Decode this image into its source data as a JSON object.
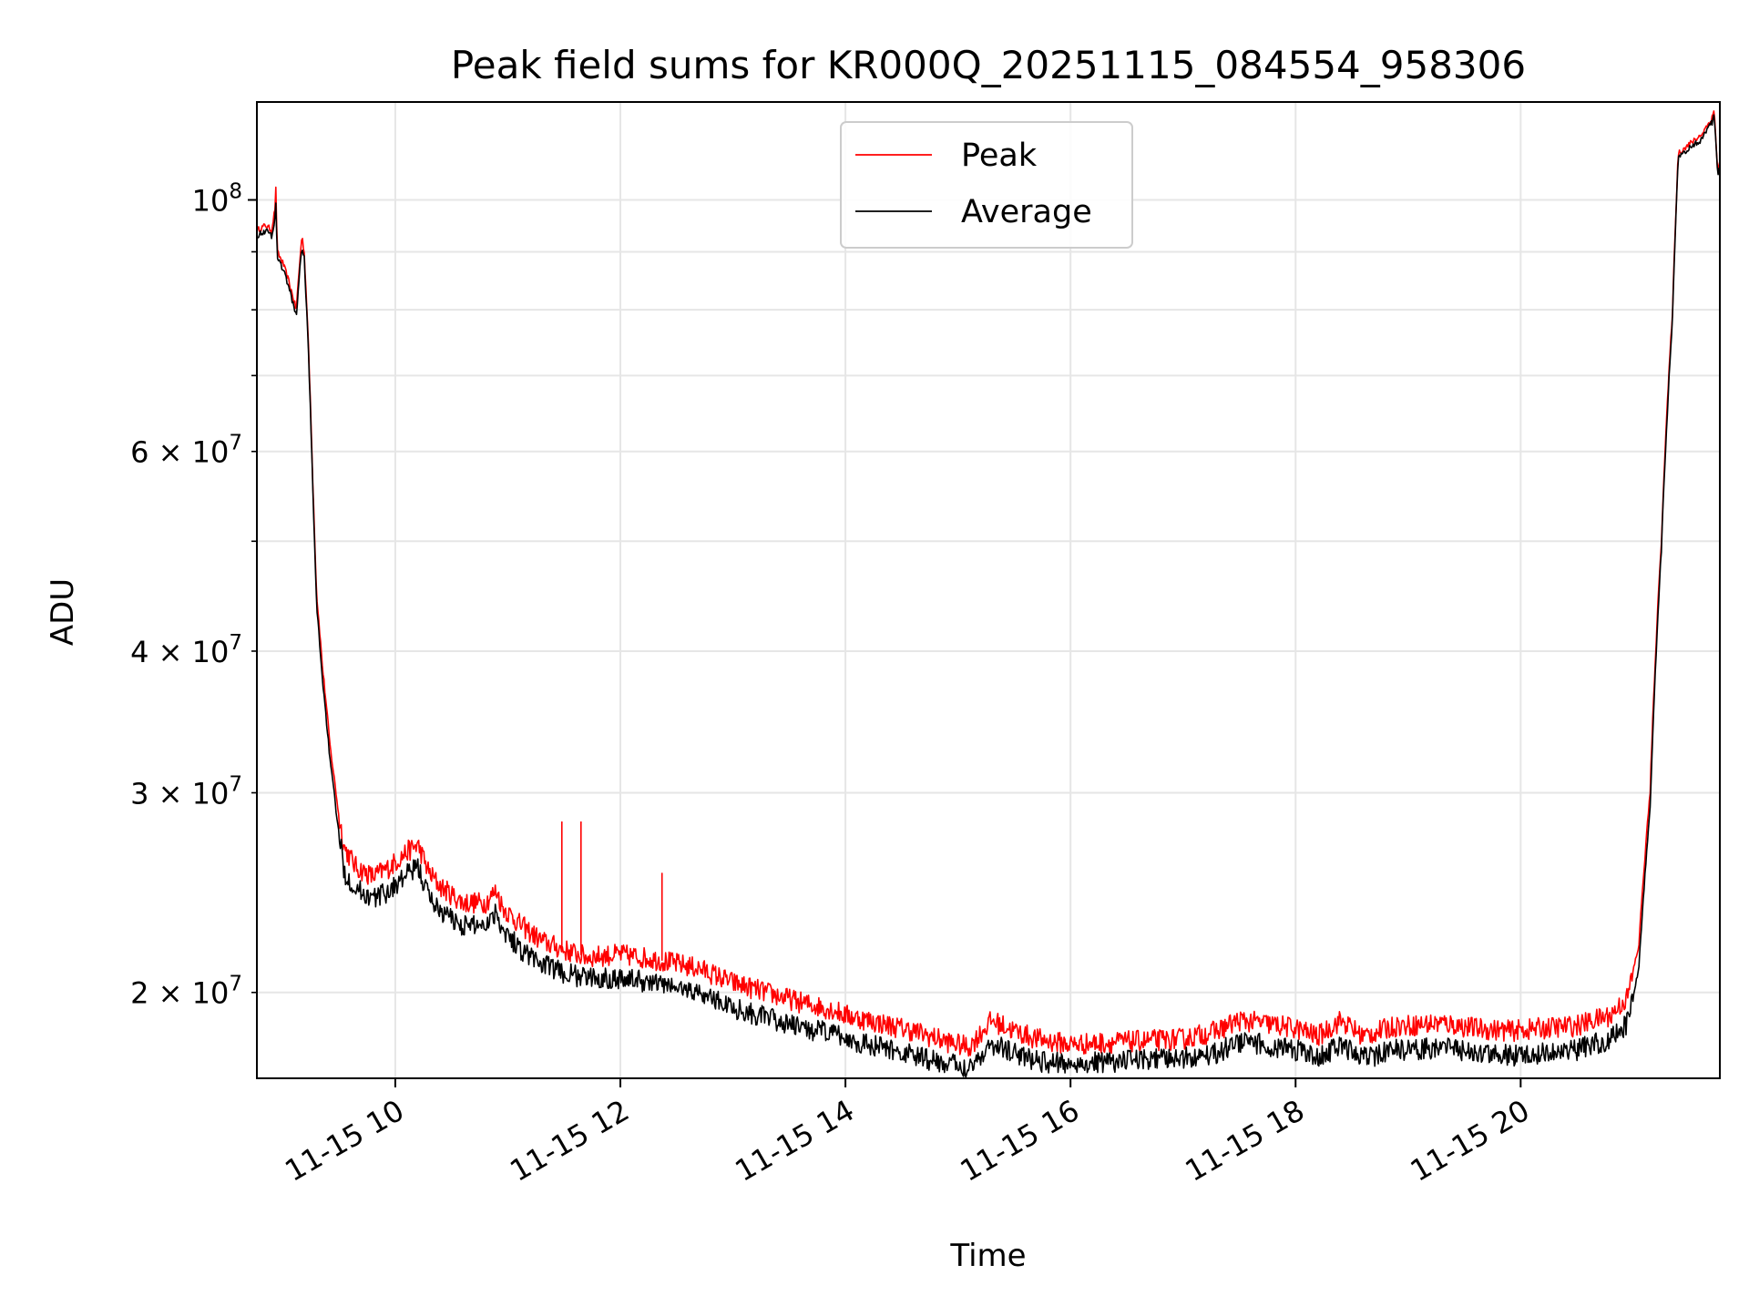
{
  "chart_data": {
    "type": "line",
    "title": "Peak field sums for KR000Q_20251115_084554_958306",
    "xlabel": "Time",
    "ylabel": "ADU",
    "x_range": [
      "2025-11-15 08:46",
      "2025-11-15 21:46"
    ],
    "xlim_hours": [
      8.77,
      21.77
    ],
    "ylim": [
      16800000,
      122000000
    ],
    "y_scale": "log",
    "grid": true,
    "legend_position": "top-center",
    "x_ticks": [
      {
        "value": 10,
        "label": "11-15 10"
      },
      {
        "value": 12,
        "label": "11-15 12"
      },
      {
        "value": 14,
        "label": "11-15 14"
      },
      {
        "value": 16,
        "label": "11-15 16"
      },
      {
        "value": 18,
        "label": "11-15 18"
      },
      {
        "value": 20,
        "label": "11-15 20"
      }
    ],
    "y_ticks_major": [
      {
        "value": 100000000,
        "base": "10",
        "exp": "8"
      }
    ],
    "y_ticks_minor": [
      {
        "value": 20000000,
        "coef": "2",
        "base": "10",
        "exp": "7"
      },
      {
        "value": 30000000,
        "coef": "3",
        "base": "10",
        "exp": "7"
      },
      {
        "value": 40000000,
        "coef": "4",
        "base": "10",
        "exp": "7"
      },
      {
        "value": 60000000,
        "coef": "6",
        "base": "10",
        "exp": "7"
      }
    ],
    "y_ticks_minor_unlabeled": [
      50000000,
      70000000,
      80000000,
      90000000
    ],
    "series": [
      {
        "name": "Peak",
        "color": "#ff0000",
        "x": [
          8.77,
          8.85,
          8.9,
          8.93,
          8.94,
          8.95,
          9.0,
          9.05,
          9.12,
          9.17,
          9.19,
          9.22,
          9.27,
          9.3,
          9.35,
          9.42,
          9.5,
          9.55,
          9.65,
          9.8,
          9.95,
          10.1,
          10.2,
          10.3,
          10.4,
          10.6,
          10.8,
          10.9,
          10.95,
          11.1,
          11.3,
          11.5,
          11.7,
          12.0,
          12.3,
          12.7,
          13.0,
          13.3,
          13.6,
          13.9,
          14.0,
          14.3,
          14.6,
          14.9,
          15.1,
          15.2,
          15.3,
          15.5,
          15.7,
          16.0,
          16.5,
          17.0,
          17.3,
          17.5,
          17.7,
          18.0,
          18.2,
          18.4,
          18.6,
          18.9,
          19.0,
          19.3,
          19.6,
          19.9,
          20.2,
          20.5,
          20.8,
          20.95,
          21.05,
          21.15,
          21.25,
          21.35,
          21.4,
          21.5,
          21.6,
          21.7,
          21.72,
          21.75,
          21.77
        ],
        "y": [
          94000000,
          95000000,
          94000000,
          98000000,
          103000000,
          90000000,
          88000000,
          85000000,
          80000000,
          93000000,
          90000000,
          78000000,
          55000000,
          45000000,
          39000000,
          33000000,
          28500000,
          26800000,
          25800000,
          25300000,
          25800000,
          26600000,
          27000000,
          25500000,
          24800000,
          24000000,
          24000000,
          24600000,
          23800000,
          23000000,
          22200000,
          21800000,
          21500000,
          21600000,
          21400000,
          21000000,
          20400000,
          20000000,
          19600000,
          19300000,
          19100000,
          18800000,
          18500000,
          18100000,
          17900000,
          18400000,
          18900000,
          18500000,
          18200000,
          18000000,
          18100000,
          18200000,
          18500000,
          18900000,
          18800000,
          18600000,
          18300000,
          18900000,
          18300000,
          18700000,
          18700000,
          18800000,
          18600000,
          18500000,
          18600000,
          18700000,
          19100000,
          19800000,
          22000000,
          30000000,
          50000000,
          80000000,
          110000000,
          112000000,
          114000000,
          118000000,
          120000000,
          106000000,
          108000000
        ],
        "spikes": [
          {
            "x": 11.48,
            "y": 28300000
          },
          {
            "x": 11.65,
            "y": 28300000
          },
          {
            "x": 12.37,
            "y": 25500000
          }
        ]
      },
      {
        "name": "Average",
        "color": "#000000",
        "x": [
          8.77,
          8.85,
          8.9,
          8.93,
          8.94,
          8.95,
          9.0,
          9.05,
          9.12,
          9.17,
          9.19,
          9.22,
          9.27,
          9.3,
          9.35,
          9.42,
          9.5,
          9.55,
          9.65,
          9.8,
          9.95,
          10.1,
          10.2,
          10.3,
          10.4,
          10.6,
          10.8,
          10.9,
          10.95,
          11.1,
          11.3,
          11.5,
          11.7,
          12.0,
          12.3,
          12.7,
          13.0,
          13.3,
          13.6,
          13.9,
          14.0,
          14.3,
          14.6,
          14.9,
          15.1,
          15.2,
          15.3,
          15.5,
          15.7,
          16.0,
          16.5,
          17.0,
          17.3,
          17.5,
          17.7,
          18.0,
          18.2,
          18.4,
          18.6,
          18.9,
          19.0,
          19.3,
          19.6,
          19.9,
          20.2,
          20.5,
          20.8,
          20.95,
          21.05,
          21.15,
          21.25,
          21.35,
          21.4,
          21.5,
          21.6,
          21.7,
          21.72,
          21.75,
          21.77
        ],
        "y": [
          93000000,
          94000000,
          93000000,
          96000000,
          100000000,
          89000000,
          87000000,
          84000000,
          79000000,
          91000000,
          89000000,
          77000000,
          54000000,
          44000000,
          38000000,
          32000000,
          27500000,
          25500000,
          24700000,
          24200000,
          24600000,
          25400000,
          25800000,
          24300000,
          23600000,
          22900000,
          23000000,
          23600000,
          22800000,
          21900000,
          21200000,
          20800000,
          20600000,
          20600000,
          20400000,
          20000000,
          19400000,
          19000000,
          18600000,
          18400000,
          18200000,
          17900000,
          17600000,
          17300000,
          17200000,
          17600000,
          18000000,
          17700000,
          17400000,
          17300000,
          17400000,
          17500000,
          17700000,
          18100000,
          18000000,
          17800000,
          17500000,
          18000000,
          17500000,
          17800000,
          17800000,
          17900000,
          17700000,
          17600000,
          17700000,
          17800000,
          18200000,
          18800000,
          21000000,
          29000000,
          49000000,
          79000000,
          109000000,
          111000000,
          113000000,
          117000000,
          119000000,
          105000000,
          107000000
        ]
      }
    ]
  }
}
